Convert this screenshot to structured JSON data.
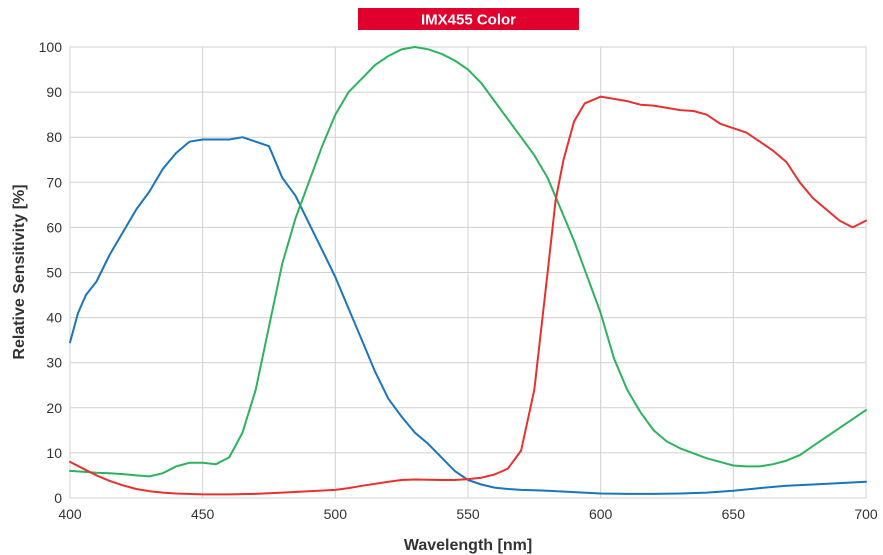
{
  "chart_data": {
    "type": "line",
    "title": "IMX455 Color",
    "xlabel": "Wavelength [nm]",
    "ylabel": "Relative Sensitivity [%]",
    "xlim": [
      400,
      700
    ],
    "ylim": [
      0,
      100
    ],
    "x_ticks": [
      400,
      450,
      500,
      550,
      600,
      650,
      700
    ],
    "y_ticks": [
      0,
      10,
      20,
      30,
      40,
      50,
      60,
      70,
      80,
      90,
      100
    ],
    "grid": true,
    "colors": {
      "title_bg": "#e1002d",
      "grid": "#d0d0d0",
      "text": "#333333"
    },
    "series": [
      {
        "color": "#1a75bc",
        "x": [
          400,
          403,
          406,
          410,
          415,
          420,
          425,
          430,
          435,
          440,
          445,
          450,
          455,
          460,
          465,
          470,
          475,
          480,
          485,
          490,
          495,
          500,
          505,
          510,
          515,
          520,
          525,
          530,
          535,
          540,
          545,
          550,
          555,
          560,
          565,
          570,
          575,
          580,
          590,
          600,
          610,
          620,
          630,
          640,
          650,
          660,
          670,
          680,
          690,
          700
        ],
        "y": [
          34.5,
          41,
          45,
          48,
          54,
          59,
          64,
          68,
          73,
          76.5,
          79,
          79.5,
          79.5,
          79.5,
          80,
          79,
          78,
          71,
          67,
          61,
          55,
          49,
          42,
          35,
          28,
          22,
          18,
          14.5,
          12,
          9,
          6,
          4,
          3,
          2.3,
          2,
          1.8,
          1.7,
          1.6,
          1.3,
          1,
          0.9,
          0.9,
          1,
          1.2,
          1.6,
          2.2,
          2.7,
          3,
          3.3,
          3.6
        ]
      },
      {
        "color": "#2db35e",
        "x": [
          400,
          405,
          410,
          415,
          420,
          425,
          430,
          435,
          440,
          445,
          450,
          455,
          460,
          465,
          470,
          475,
          480,
          485,
          490,
          495,
          500,
          505,
          510,
          515,
          520,
          525,
          530,
          535,
          540,
          545,
          550,
          555,
          560,
          565,
          570,
          575,
          580,
          585,
          590,
          595,
          600,
          605,
          610,
          615,
          620,
          625,
          630,
          640,
          650,
          655,
          660,
          665,
          670,
          675,
          680,
          685,
          690,
          695,
          700
        ],
        "y": [
          6,
          5.8,
          5.6,
          5.5,
          5.3,
          5,
          4.8,
          5.5,
          7,
          7.8,
          7.8,
          7.5,
          9,
          14.5,
          24,
          38,
          52,
          62,
          70,
          78,
          85,
          90,
          93,
          96,
          98,
          99.5,
          100,
          99.5,
          98.5,
          97,
          95,
          92,
          88,
          84,
          80,
          76,
          71,
          64,
          57,
          49,
          41,
          31,
          24,
          19,
          15,
          12.5,
          11,
          8.8,
          7.2,
          7,
          7,
          7.5,
          8.3,
          9.5,
          11.5,
          13.5,
          15.5,
          17.5,
          19.5
        ]
      },
      {
        "color": "#e8312f",
        "x": [
          400,
          405,
          410,
          415,
          420,
          425,
          430,
          435,
          440,
          450,
          460,
          470,
          480,
          490,
          500,
          505,
          510,
          520,
          525,
          530,
          540,
          545,
          550,
          555,
          560,
          565,
          570,
          575,
          580,
          583,
          586,
          590,
          594,
          600,
          605,
          610,
          615,
          620,
          625,
          630,
          635,
          640,
          645,
          650,
          655,
          660,
          665,
          670,
          675,
          680,
          685,
          690,
          695,
          700
        ],
        "y": [
          8,
          6.5,
          5,
          3.8,
          2.8,
          2,
          1.5,
          1.2,
          1,
          0.8,
          0.8,
          0.9,
          1.2,
          1.5,
          1.8,
          2.2,
          2.7,
          3.6,
          4,
          4.1,
          4,
          4,
          4.2,
          4.5,
          5.2,
          6.5,
          10.5,
          24,
          50,
          66,
          75,
          83.5,
          87.5,
          89,
          88.5,
          88,
          87.2,
          87,
          86.5,
          86,
          85.8,
          85,
          83,
          82,
          81,
          79,
          77,
          74.5,
          70,
          66.5,
          64,
          61.5,
          60,
          61.5
        ]
      }
    ]
  }
}
